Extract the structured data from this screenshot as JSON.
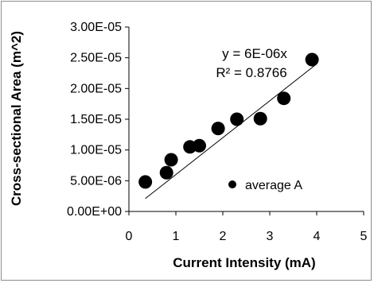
{
  "chart_data": {
    "type": "scatter",
    "xlabel": "Current Intensity (mA)",
    "ylabel": "Cross-sectional Area (m^2)",
    "xlim": [
      0,
      5
    ],
    "ylim": [
      0,
      3e-05
    ],
    "xticks": [
      "0",
      "1",
      "2",
      "3",
      "4",
      "5"
    ],
    "yticks": [
      "0.00E+00",
      "5.00E-06",
      "1.00E-05",
      "1.50E-05",
      "2.00E-05",
      "2.50E-05",
      "3.00E-05"
    ],
    "grid": false,
    "legend_position": "bottom-right",
    "series": [
      {
        "name": "average A",
        "color": "#000000",
        "x": [
          0.35,
          0.8,
          0.9,
          1.3,
          1.5,
          1.9,
          2.3,
          2.8,
          3.3,
          3.9
        ],
        "y": [
          4.8e-06,
          6.3e-06,
          8.4e-06,
          1.05e-05,
          1.07e-05,
          1.35e-05,
          1.5e-05,
          1.51e-05,
          1.84e-05,
          2.47e-05
        ]
      }
    ],
    "trendline": {
      "x": [
        0.35,
        4.0
      ],
      "y": [
        2.1e-06,
        2.4e-05
      ],
      "equation": "y = 6E-06x",
      "r_squared": "R² = 0.8766"
    }
  }
}
